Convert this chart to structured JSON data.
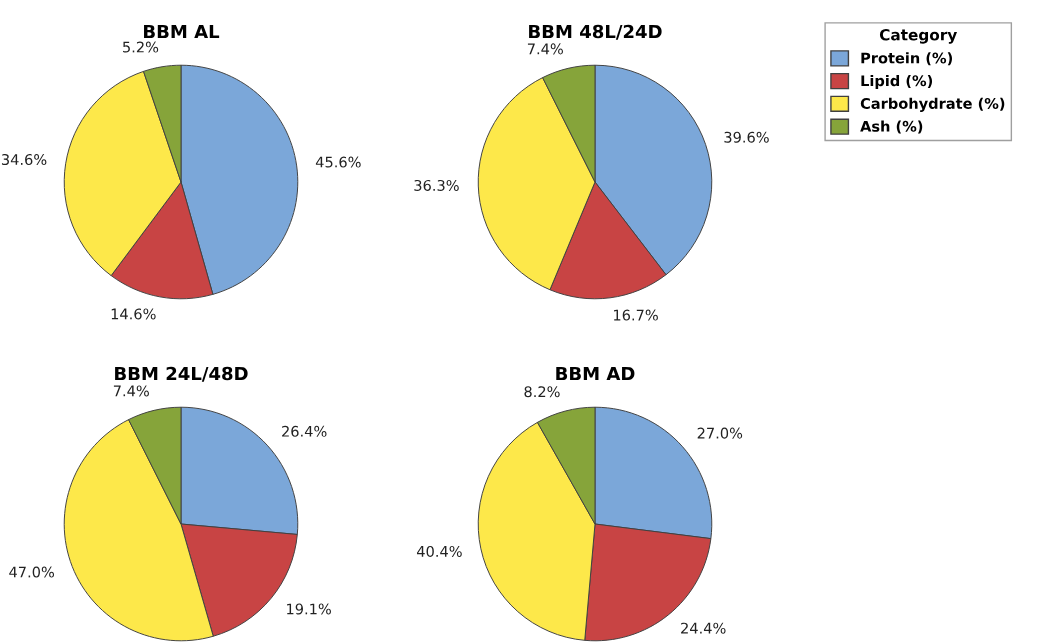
{
  "chart_data": [
    {
      "type": "pie",
      "title": "BBM AL",
      "categories": [
        "Protein (%)",
        "Lipid (%)",
        "Carbohydrate (%)",
        "Ash (%)"
      ],
      "values": [
        45.6,
        14.6,
        34.6,
        5.2
      ],
      "value_labels": [
        "45.6%",
        "14.6%",
        "34.6%",
        "5.2%"
      ],
      "colors": [
        "#7ba7d9",
        "#c84444",
        "#fde84a",
        "#86a43a"
      ],
      "legend": "right",
      "legend_title": "Category"
    },
    {
      "type": "pie",
      "title": "BBM 48L/24D",
      "categories": [
        null,
        null,
        null,
        null
      ],
      "values": [
        39.6,
        16.7,
        36.3,
        7.4
      ],
      "value_labels": [
        "39.6%",
        "16.7%",
        "36.3%",
        "7.4%"
      ],
      "colors": [
        "#7ba7d9",
        "#c84444",
        "#fde84a",
        "#86a43a"
      ]
    },
    {
      "type": "pie",
      "title": "BBM 24L/48D",
      "categories": [
        null,
        null,
        null,
        null
      ],
      "values": [
        26.4,
        19.1,
        47.0,
        7.4
      ],
      "value_labels": [
        "26.4%",
        "19.1%",
        "47.0%",
        "7.4%"
      ],
      "colors": [
        "#7ba7d9",
        "#c84444",
        "#fde84a",
        "#86a43a"
      ]
    },
    {
      "type": "pie",
      "title": "BBM AD",
      "categories": [
        null,
        null,
        null,
        null
      ],
      "values": [
        27.0,
        24.4,
        40.4,
        8.2
      ],
      "value_labels": [
        "27.0%",
        "24.4%",
        "40.4%",
        "8.2%"
      ],
      "colors": [
        "#7ba7d9",
        "#c84444",
        "#fde84a",
        "#86a43a"
      ]
    }
  ]
}
